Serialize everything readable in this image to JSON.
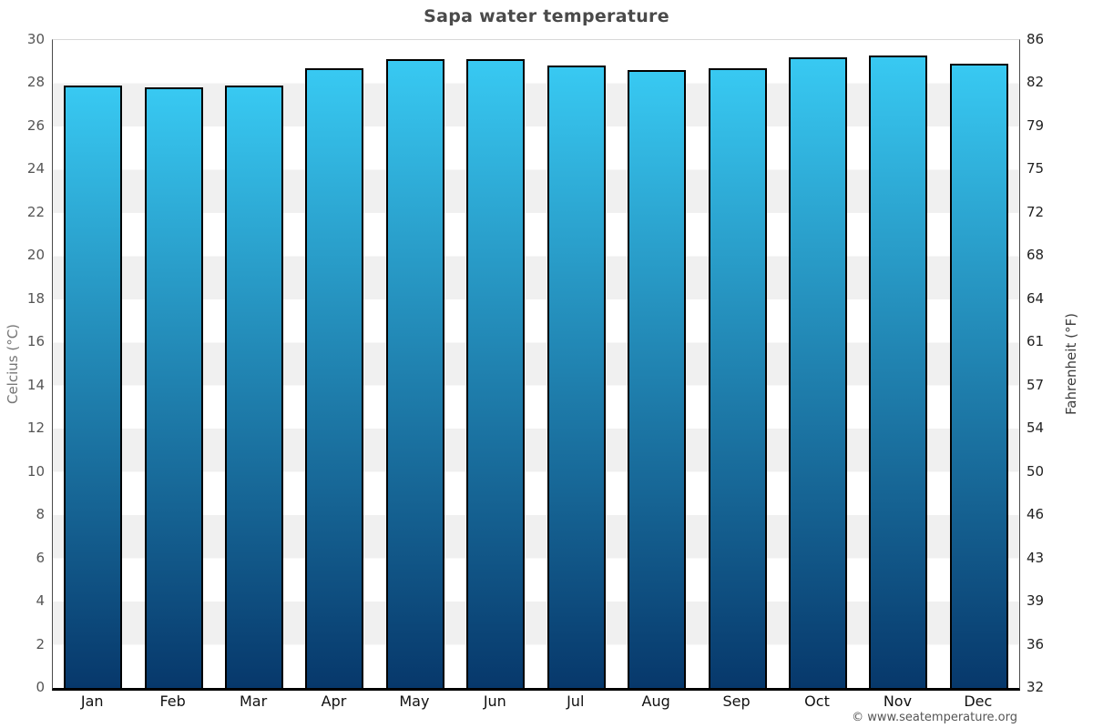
{
  "page": {
    "title": "Sapa water temperature",
    "footer": "© www.seatemperature.org"
  },
  "chart_data": {
    "type": "bar",
    "title": "Sapa water temperature",
    "categories": [
      "Jan",
      "Feb",
      "Mar",
      "Apr",
      "May",
      "Jun",
      "Jul",
      "Aug",
      "Sep",
      "Oct",
      "Nov",
      "Dec"
    ],
    "series": [
      {
        "name": "Water temperature (°C)",
        "values": [
          27.9,
          27.8,
          27.9,
          28.7,
          29.1,
          29.1,
          28.8,
          28.6,
          28.7,
          29.2,
          29.3,
          28.9
        ]
      }
    ],
    "xlabel": "",
    "ylabel_left": "Celcius (°C)",
    "ylabel_right": "Fahrenheit (°F)",
    "ylim_celsius": [
      0,
      30
    ],
    "celsius_ticks": [
      30,
      28,
      26,
      24,
      22,
      20,
      18,
      16,
      14,
      12,
      10,
      8,
      6,
      4,
      2,
      0
    ],
    "fahrenheit_ticks": [
      86,
      82,
      79,
      75,
      72,
      68,
      64,
      61,
      57,
      54,
      50,
      46,
      43,
      39,
      36,
      32
    ],
    "legend": null,
    "grid": "alternating horizontal bands every 2°C, no gridlines, no vertical grid",
    "colors": {
      "bar_gradient_top": "#38c9f2",
      "bar_gradient_bottom": "#07386b",
      "bar_border": "#000000",
      "band_white": "#ffffff",
      "band_gray": "#f0f0f0",
      "title_text": "#4a4a4a",
      "tick_left_text": "#555555",
      "tick_right_text": "#222222",
      "month_text": "#111111",
      "ylabel_left_text": "#757575",
      "ylabel_right_text": "#3d3d3d",
      "footer_text": "#555555"
    }
  }
}
